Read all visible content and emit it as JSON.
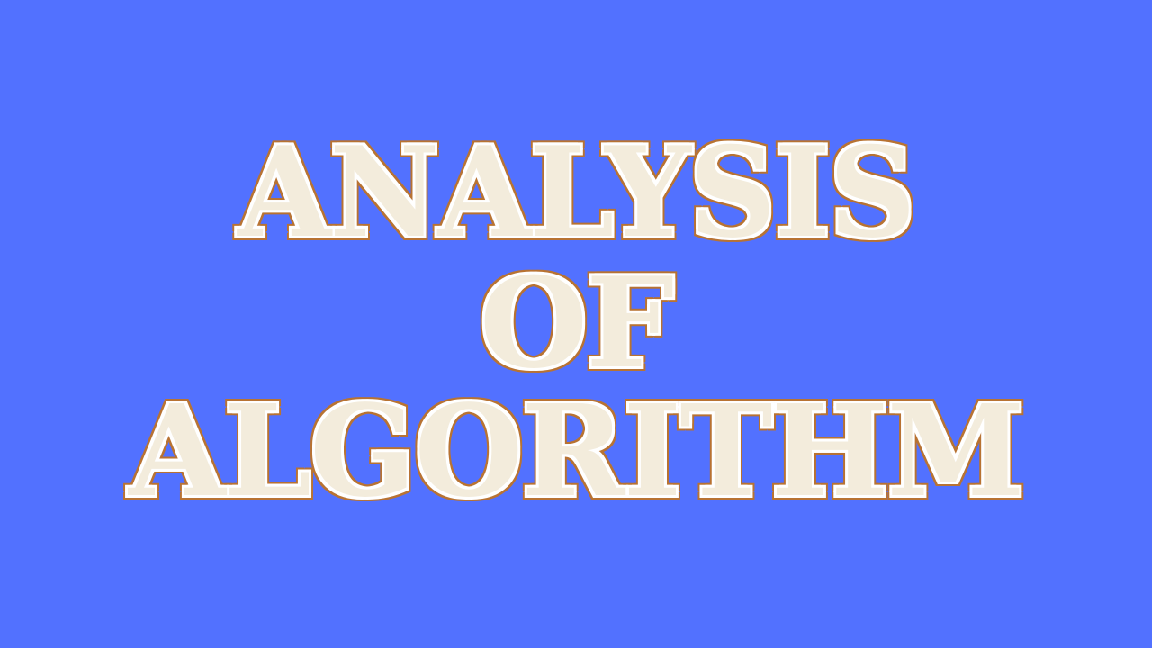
{
  "canvas": {
    "background_color": "#5271ff"
  },
  "title": {
    "line_1": "ANALYSIS",
    "line_2": "OF",
    "line_3": "ALGORITHM",
    "text_fill_color": "#f3ecdc",
    "outline_color": "#b87333",
    "inner_outline_color": "#ffffff"
  }
}
